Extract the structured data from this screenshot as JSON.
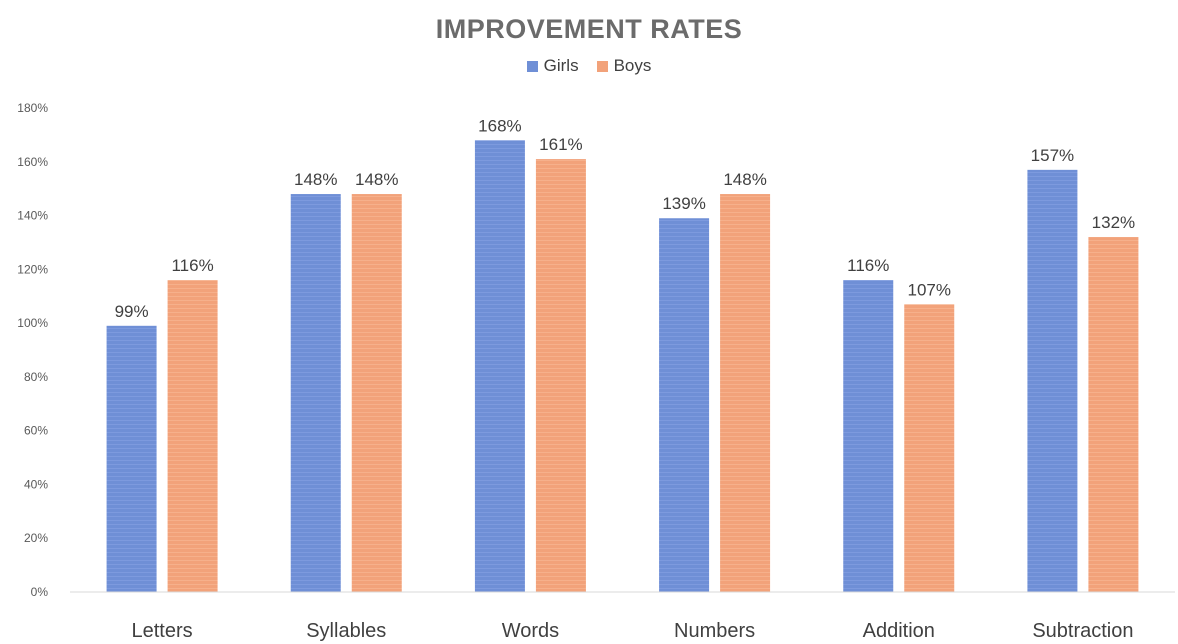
{
  "chart_data": {
    "type": "bar",
    "title": "IMPROVEMENT RATES",
    "categories": [
      "Letters",
      "Syllables",
      "Words",
      "Numbers",
      "Addition",
      "Subtraction"
    ],
    "series": [
      {
        "name": "Girls",
        "color": "#6f8fd6",
        "values": [
          99,
          148,
          168,
          139,
          116,
          157
        ],
        "labels": [
          "99%",
          "148%",
          "168%",
          "139%",
          "116%",
          "157%"
        ]
      },
      {
        "name": "Boys",
        "color": "#f2a27a",
        "values": [
          116,
          148,
          161,
          148,
          107,
          132
        ],
        "labels": [
          "116%",
          "148%",
          "161%",
          "148%",
          "107%",
          "132%"
        ]
      }
    ],
    "y_ticks": [
      0,
      20,
      40,
      60,
      80,
      100,
      120,
      140,
      160,
      180
    ],
    "y_tick_labels": [
      "0%",
      "20%",
      "40%",
      "60%",
      "80%",
      "100%",
      "120%",
      "140%",
      "160%",
      "180%"
    ],
    "ylim": [
      0,
      180
    ],
    "xlabel": "",
    "ylabel": "",
    "grid": false,
    "legend_position": "top-center"
  }
}
